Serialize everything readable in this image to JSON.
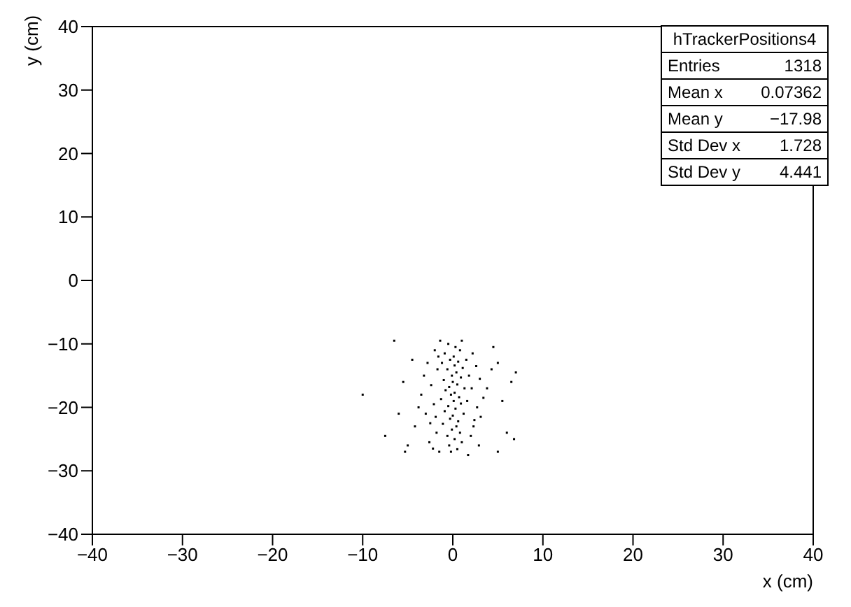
{
  "chart_data": {
    "type": "scatter",
    "xlabel": "x (cm)",
    "ylabel": "y (cm)",
    "xlim": [
      -40,
      40
    ],
    "xticks": [
      -40,
      -30,
      -20,
      -10,
      0,
      10,
      20,
      30,
      40
    ],
    "ylim": [
      -40,
      40
    ],
    "yticks": [
      -40,
      -30,
      -20,
      -10,
      0,
      10,
      20,
      30,
      40
    ],
    "grid": false,
    "legend": false,
    "annotations": [
      "hTrackerPositions4",
      "Entries 1318",
      "Mean x 0.07362",
      "Mean y −17.98",
      "Std Dev x 1.728",
      "Std Dev y 4.441"
    ],
    "series": [
      {
        "color": "#000000",
        "x": [
          -0.5,
          0.3,
          0.8,
          -0.9,
          0.1,
          -0.3,
          0.6,
          -1.2,
          0.2,
          1.1,
          -0.6,
          0.4,
          -0.1,
          0.9,
          -1.0,
          0.0,
          0.5,
          -0.4,
          1.3,
          -0.8,
          0.2,
          -0.2,
          0.7,
          -1.3,
          0.1,
          0.9,
          -0.5,
          0.3,
          -0.9,
          1.2,
          0.0,
          -0.3,
          0.6,
          -1.1,
          0.4,
          -0.1,
          0.8,
          -0.6,
          0.2,
          1.0,
          -0.4,
          0.5,
          -0.2,
          -2,
          2.2,
          -2.8,
          2.6,
          -3.2,
          3.0,
          -2.4,
          2.1,
          -3.5,
          3.4,
          -2.1,
          2.7,
          -3.0,
          3.1,
          -2.5,
          2.3,
          -1.8,
          2.0,
          -2.6,
          2.9,
          -1.5,
          1.7,
          -3.8,
          3.8,
          -1.7,
          1.8,
          -1.9,
          1.6,
          -4.2,
          4.3,
          -1.6,
          1.5,
          -2.2,
          2.4,
          -1.4,
          1.0,
          -10,
          -7.5,
          -6.5,
          -6,
          -5.5,
          -5,
          -4.5,
          5,
          5.5,
          6,
          6.5,
          7,
          5,
          4.5,
          -5.3,
          6.8
        ],
        "values": [
          -10,
          -10.5,
          -11,
          -11.5,
          -12,
          -12.5,
          -12.8,
          -13,
          -13.4,
          -13.8,
          -14,
          -14.5,
          -15,
          -15.3,
          -15.7,
          -16,
          -16.4,
          -16.8,
          -17,
          -17.3,
          -17.7,
          -18,
          -18.4,
          -18.7,
          -19,
          -19.4,
          -19.8,
          -20.2,
          -20.6,
          -21,
          -21.3,
          -21.8,
          -22.2,
          -22.6,
          -23,
          -23.5,
          -24,
          -24.5,
          -25,
          -25.5,
          -26,
          -26.6,
          -27,
          -11,
          -11.5,
          -13,
          -13.5,
          -15,
          -15.5,
          -16.5,
          -17,
          -18,
          -18.5,
          -19.5,
          -20,
          -21,
          -21.5,
          -22.5,
          -23,
          -24,
          -24.5,
          -25.5,
          -26,
          -27,
          -27.5,
          -20,
          -17,
          -14,
          -15,
          -21.5,
          -19,
          -23,
          -14,
          -12,
          -12.5,
          -26.5,
          -22,
          -9.5,
          -9.5,
          -18,
          -24.5,
          -9.5,
          -21,
          -16,
          -26,
          -12.5,
          -13,
          -19,
          -24,
          -16,
          -14.5,
          -27,
          -10.5,
          -27,
          -25
        ]
      }
    ]
  }
}
